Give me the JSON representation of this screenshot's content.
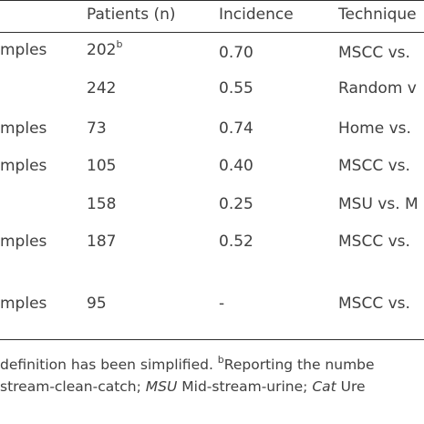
{
  "table": {
    "headers": [
      "",
      "Patients (n)",
      "Incidence",
      "Technique"
    ],
    "rows": [
      {
        "c0": "mples",
        "patients": "202",
        "patients_sup": "b",
        "incidence": "0.70",
        "technique": "MSCC vs."
      },
      {
        "c0": "",
        "patients": "242",
        "patients_sup": "",
        "incidence": "0.55",
        "technique": "Random v"
      },
      {
        "c0": "mples",
        "patients": "73",
        "patients_sup": "",
        "incidence": "0.74",
        "technique": "Home vs."
      },
      {
        "c0": "mples",
        "patients": "105",
        "patients_sup": "",
        "incidence": "0.40",
        "technique": "MSCC vs."
      },
      {
        "c0": "",
        "patients": "158",
        "patients_sup": "",
        "incidence": "0.25",
        "technique": "MSU vs. M"
      },
      {
        "c0": "mples",
        "patients": "187",
        "patients_sup": "",
        "incidence": "0.52",
        "technique": "MSCC vs."
      },
      {
        "c0": "mples",
        "patients": "95",
        "patients_sup": "",
        "incidence": "-",
        "technique": "MSCC vs."
      }
    ]
  },
  "footnote": {
    "line1_a": "definition has been simplified. ",
    "line1_sup": "b",
    "line1_b": "Reporting the numbe",
    "line2_a": "stream-clean-catch; ",
    "line2_msu": "MSU",
    "line2_b": " Mid-stream-urine; ",
    "line2_cat": "Cat",
    "line2_c": " Ure"
  }
}
